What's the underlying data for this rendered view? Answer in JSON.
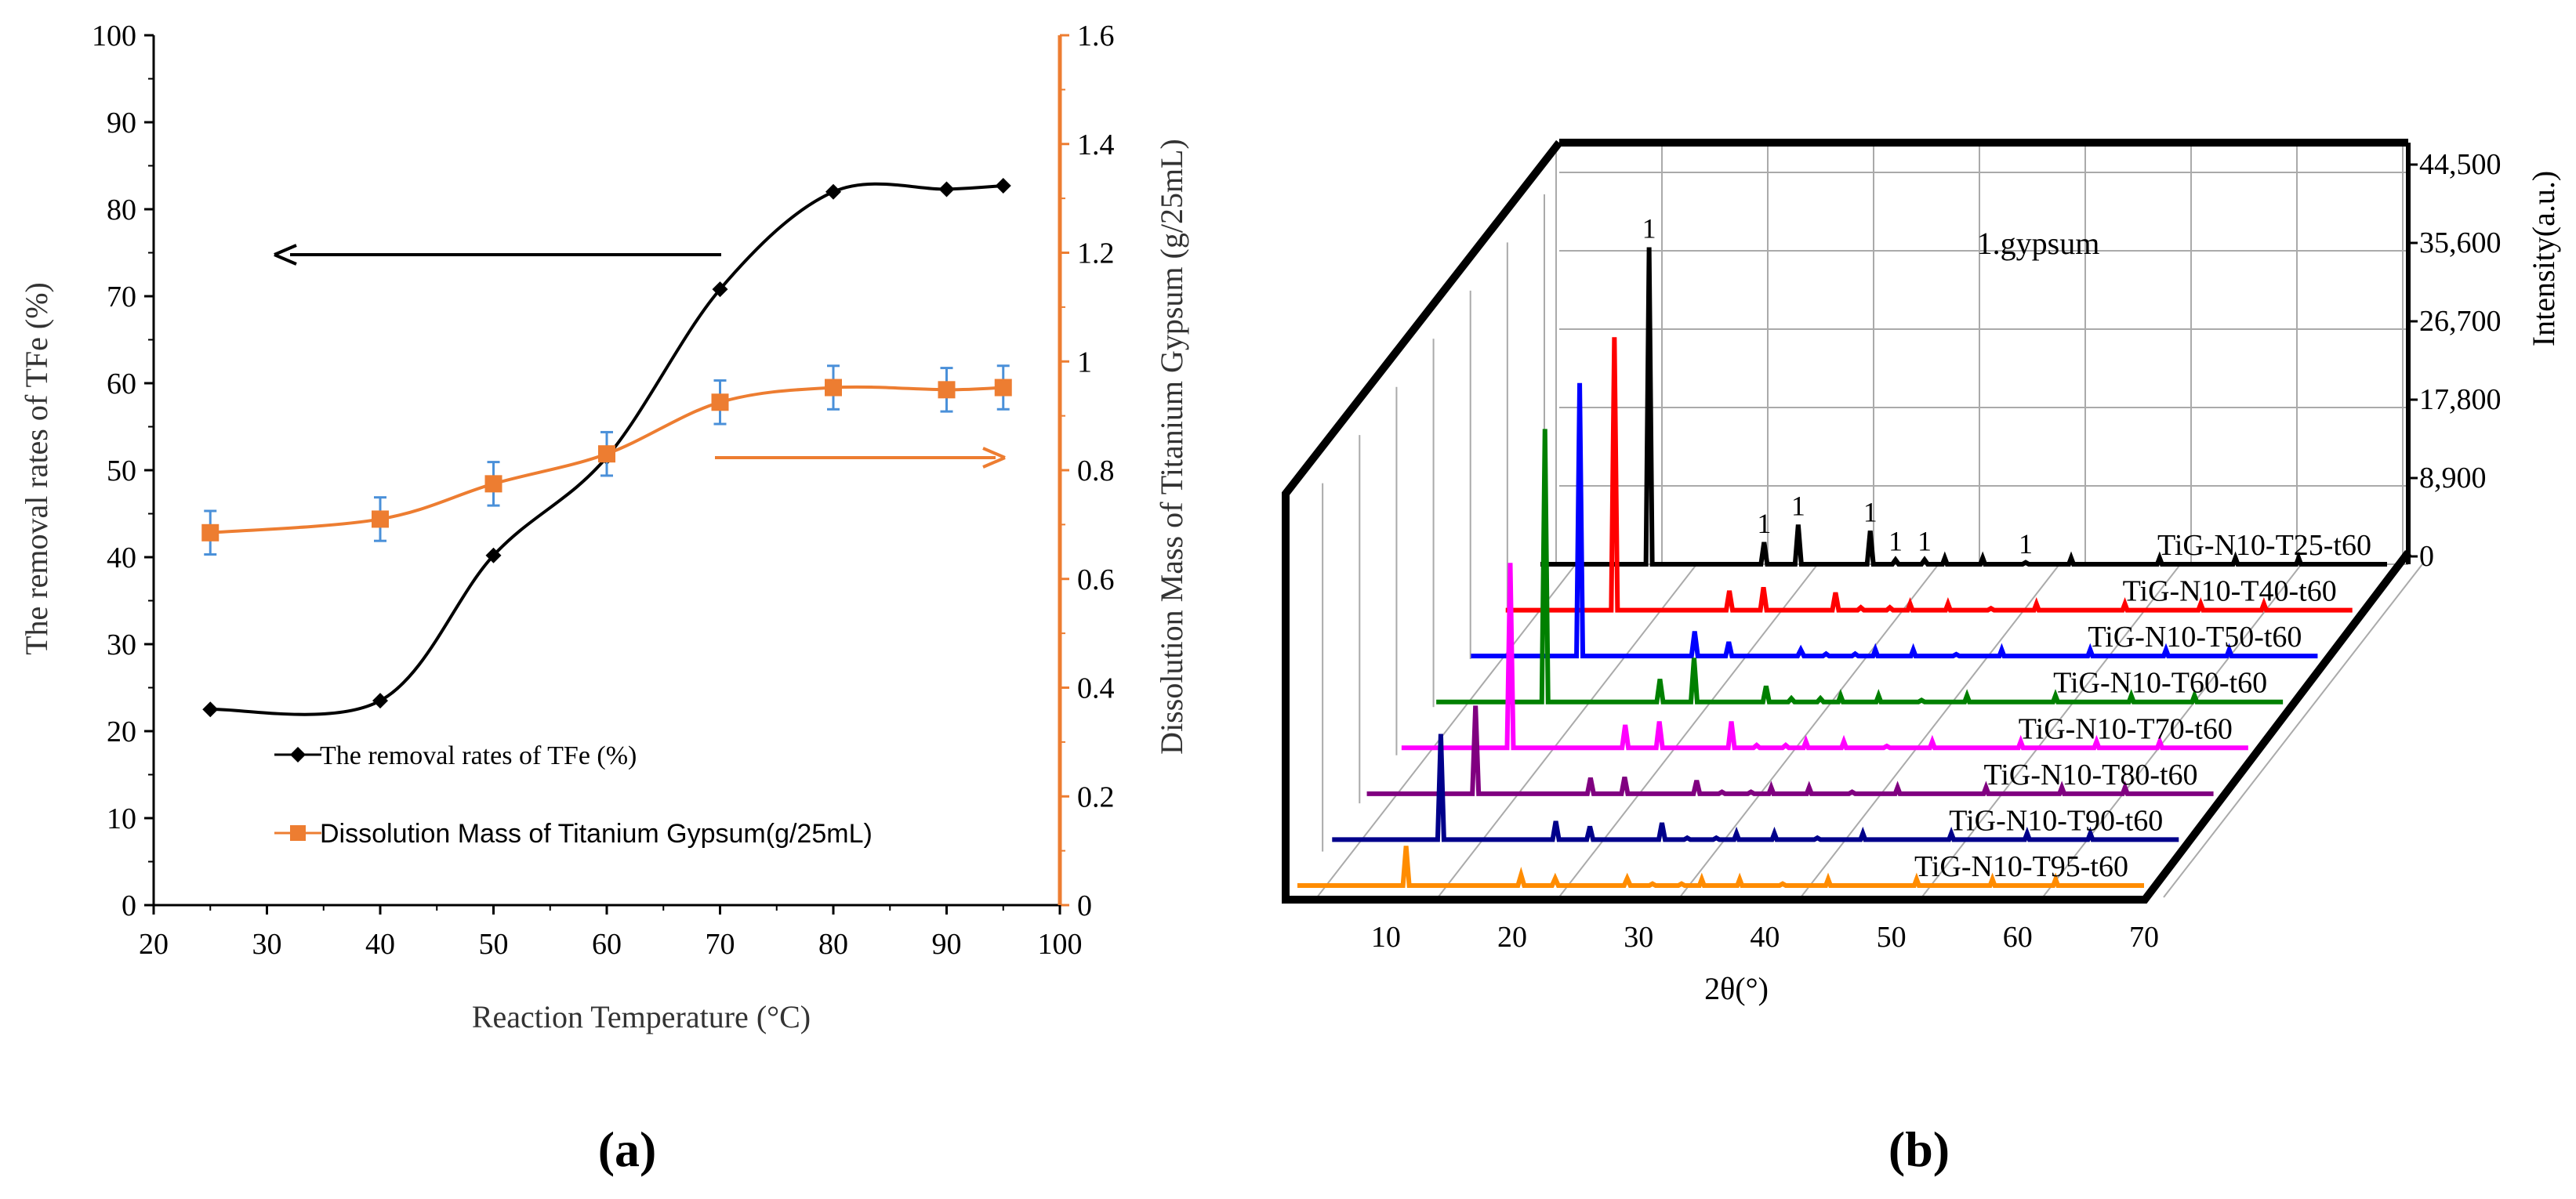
{
  "panel_labels": {
    "a": "(a)",
    "b": "(b)"
  },
  "colors": {
    "tfe": "#000000",
    "mass": "#ED7D31",
    "errorbar": "#4A90D9",
    "xrd": [
      "#000000",
      "#FF0000",
      "#0000FF",
      "#008000",
      "#FF00FF",
      "#800080",
      "#00008B",
      "#FF8C00"
    ]
  },
  "chart_data": [
    {
      "type": "line",
      "panel": "a",
      "xlabel": "Reaction Temperature (°C)",
      "ylabel": "The removal rates of  TFe (%)",
      "y2label": "Dissolution Mass of Titanium Gypsum (g/25mL)",
      "xlim": [
        20,
        100
      ],
      "ylim": [
        0,
        100
      ],
      "y2lim": [
        0,
        1.6
      ],
      "xticks": [
        "20",
        "30",
        "40",
        "50",
        "60",
        "70",
        "80",
        "90",
        "100"
      ],
      "yticks": [
        "0",
        "10",
        "20",
        "30",
        "40",
        "50",
        "60",
        "70",
        "80",
        "90",
        "100"
      ],
      "y2ticks": [
        "0",
        "0.2",
        "0.4",
        "0.6",
        "0.8",
        "1",
        "1.2",
        "1.4",
        "1.6"
      ],
      "x": [
        25,
        40,
        50,
        60,
        70,
        80,
        90,
        95
      ],
      "series": [
        {
          "name": "The removal rates of  TFe (%)",
          "axis": "left",
          "marker": "diamond",
          "values": [
            22.5,
            23.5,
            40.2,
            51.5,
            70.8,
            82.0,
            82.3,
            82.7
          ]
        },
        {
          "name": "Dissolution Mass of Titanium Gypsum(g/25mL)",
          "axis": "right",
          "marker": "square",
          "values": [
            0.685,
            0.71,
            0.775,
            0.83,
            0.925,
            0.952,
            0.948,
            0.952
          ],
          "errors": [
            0.04,
            0.04,
            0.04,
            0.04,
            0.04,
            0.04,
            0.04,
            0.04
          ]
        }
      ],
      "legend_position": "bottom-left"
    },
    {
      "type": "line",
      "panel": "b",
      "xlabel": "2θ(°)",
      "zlabel": "Intensity(a.u.)",
      "xlim": [
        3,
        70
      ],
      "xticks": [
        "10",
        "20",
        "30",
        "40",
        "50",
        "60",
        "70"
      ],
      "zlim": [
        0,
        44500
      ],
      "zticks": [
        "0",
        "8,900",
        "17,800",
        "26,700",
        "35,600",
        "44,500"
      ],
      "annotation": "1.gypsum",
      "peak_label": "1",
      "peak_positions": [
        11.6,
        20.7,
        23.4,
        29.1,
        31.1,
        33.4,
        41.4
      ],
      "series": [
        {
          "name": "TiG-N10-T25-t60",
          "peaks": [
            36000,
            2500,
            4500,
            3800,
            500,
            500,
            200
          ]
        },
        {
          "name": "TiG-N10-T40-t60",
          "peaks": [
            31000,
            2200,
            2600,
            2000,
            300,
            300,
            200
          ]
        },
        {
          "name": "TiG-N10-T50-t60",
          "peaks": [
            31000,
            2800,
            1600,
            700,
            250,
            250,
            200
          ]
        },
        {
          "name": "TiG-N10-T60-t60",
          "peaks": [
            31000,
            2600,
            5000,
            1800,
            400,
            400,
            200
          ]
        },
        {
          "name": "TiG-N10-T70-t60",
          "peaks": [
            21000,
            2600,
            3000,
            3000,
            300,
            300,
            200
          ]
        },
        {
          "name": "TiG-N10-T80-t60",
          "peaks": [
            10000,
            1800,
            1900,
            1500,
            200,
            200,
            200
          ]
        },
        {
          "name": "TiG-N10-T90-t60",
          "peaks": [
            12000,
            2100,
            1500,
            1900,
            200,
            200,
            200
          ]
        },
        {
          "name": "TiG-N10-T95-t60",
          "peaks": [
            4500,
            1200,
            800,
            800,
            200,
            200,
            200
          ]
        }
      ]
    }
  ]
}
